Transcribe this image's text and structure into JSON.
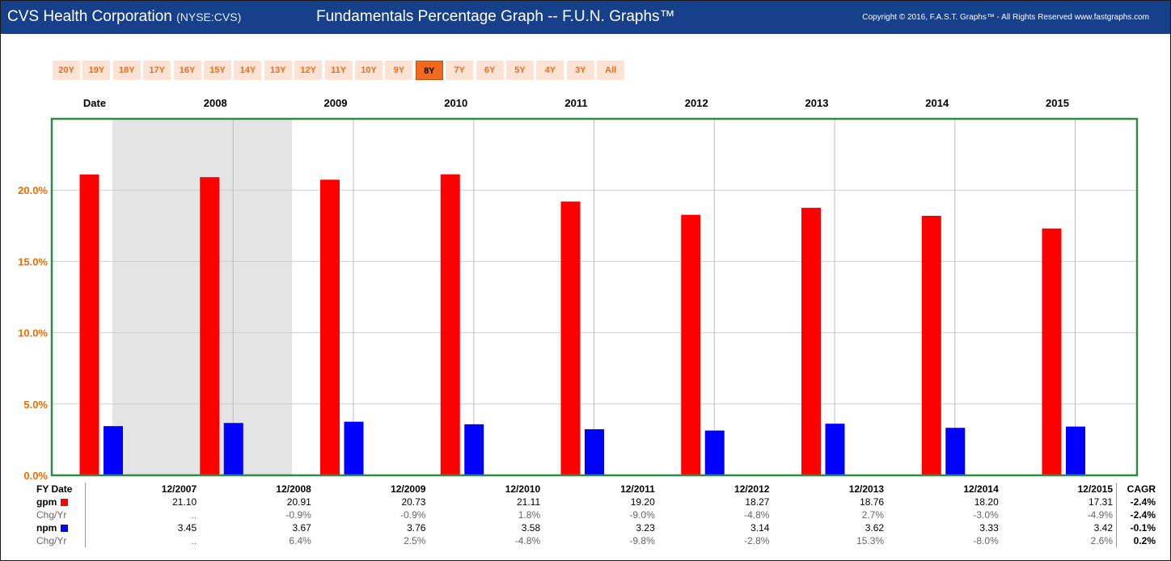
{
  "header": {
    "company": "CVS Health Corporation",
    "ticker": "(NYSE:CVS)",
    "title": "Fundamentals Percentage Graph -- F.U.N. Graphs™",
    "copyright": "Copyright © 2016, F.A.S.T. Graphs™ - All Rights Reserved www.fastgraphs.com"
  },
  "ranges": {
    "items": [
      "20Y",
      "19Y",
      "18Y",
      "17Y",
      "16Y",
      "15Y",
      "14Y",
      "13Y",
      "12Y",
      "11Y",
      "10Y",
      "9Y",
      "8Y",
      "7Y",
      "6Y",
      "5Y",
      "4Y",
      "3Y",
      "All"
    ],
    "selected": "8Y"
  },
  "colors": {
    "gpm": "#ff0000",
    "npm": "#0000ff",
    "frame": "#2e8b47",
    "shade": "#e4e4e4",
    "axis_label": "#ef6c00"
  },
  "chart_data": {
    "type": "bar",
    "top_header_label": "Date",
    "top_years": [
      "2008",
      "2009",
      "2010",
      "2011",
      "2012",
      "2013",
      "2014",
      "2015"
    ],
    "categories": [
      "12/2007",
      "12/2008",
      "12/2009",
      "12/2010",
      "12/2011",
      "12/2012",
      "12/2013",
      "12/2014",
      "12/2015"
    ],
    "series": [
      {
        "name": "gpm",
        "values": [
          21.1,
          20.91,
          20.73,
          21.11,
          19.2,
          18.27,
          18.76,
          18.2,
          17.31
        ]
      },
      {
        "name": "npm",
        "values": [
          3.45,
          3.67,
          3.76,
          3.58,
          3.23,
          3.14,
          3.62,
          3.33,
          3.42
        ]
      }
    ],
    "yticks": [
      "0.0%",
      "5.0%",
      "10.0%",
      "15.0%",
      "20.0%"
    ],
    "ylim": [
      0,
      25
    ],
    "shaded_period": "2008",
    "grid": true
  },
  "table": {
    "header_label": "FY Date",
    "cagr_label": "CAGR",
    "dates": [
      "12/2007",
      "12/2008",
      "12/2009",
      "12/2010",
      "12/2011",
      "12/2012",
      "12/2013",
      "12/2014",
      "12/2015"
    ],
    "rows": [
      {
        "label": "gpm",
        "swatch": "#ff0000",
        "values": [
          "21.10",
          "20.91",
          "20.73",
          "21.11",
          "19.20",
          "18.27",
          "18.76",
          "18.20",
          "17.31"
        ],
        "cagr": "-2.4%"
      },
      {
        "label": "Chg/Yr",
        "values": [
          "..",
          "-0.9%",
          "-0.9%",
          "1.8%",
          "-9.0%",
          "-4.8%",
          "2.7%",
          "-3.0%",
          "-4.9%"
        ],
        "cagr": "-2.4%"
      },
      {
        "label": "npm",
        "swatch": "#0000ff",
        "values": [
          "3.45",
          "3.67",
          "3.76",
          "3.58",
          "3.23",
          "3.14",
          "3.62",
          "3.33",
          "3.42"
        ],
        "cagr": "-0.1%"
      },
      {
        "label": "Chg/Yr",
        "values": [
          "..",
          "6.4%",
          "2.5%",
          "-4.8%",
          "-9.8%",
          "-2.8%",
          "15.3%",
          "-8.0%",
          "2.6%"
        ],
        "cagr": "0.2%"
      }
    ]
  }
}
